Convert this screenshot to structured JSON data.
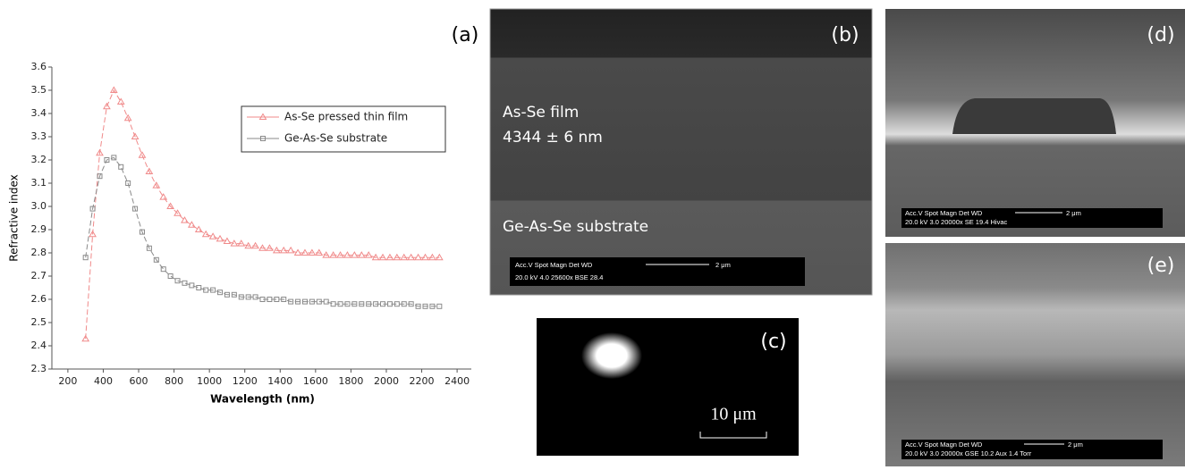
{
  "chart_data": {
    "type": "line",
    "xlabel": "Wavelength (nm)",
    "ylabel": "Refractive index",
    "x": [
      300,
      340,
      380,
      420,
      460,
      500,
      540,
      580,
      620,
      660,
      700,
      740,
      780,
      820,
      860,
      900,
      940,
      980,
      1020,
      1060,
      1100,
      1140,
      1180,
      1220,
      1260,
      1300,
      1340,
      1380,
      1420,
      1460,
      1500,
      1540,
      1580,
      1620,
      1660,
      1700,
      1740,
      1780,
      1820,
      1860,
      1900,
      1940,
      1980,
      2020,
      2060,
      2100,
      2140,
      2180,
      2220,
      2260,
      2300
    ],
    "series": [
      {
        "name": "As-Se pressed thin film",
        "color": "#f08a8a",
        "marker": "triangle",
        "values": [
          2.43,
          2.88,
          3.23,
          3.43,
          3.5,
          3.45,
          3.38,
          3.3,
          3.22,
          3.15,
          3.09,
          3.04,
          3.0,
          2.97,
          2.94,
          2.92,
          2.9,
          2.88,
          2.87,
          2.86,
          2.85,
          2.84,
          2.84,
          2.83,
          2.83,
          2.82,
          2.82,
          2.81,
          2.81,
          2.81,
          2.8,
          2.8,
          2.8,
          2.8,
          2.79,
          2.79,
          2.79,
          2.79,
          2.79,
          2.79,
          2.79,
          2.78,
          2.78,
          2.78,
          2.78,
          2.78,
          2.78,
          2.78,
          2.78,
          2.78,
          2.78
        ]
      },
      {
        "name": "Ge-As-Se substrate",
        "color": "#8a8a8a",
        "marker": "square",
        "values": [
          2.78,
          2.99,
          3.13,
          3.2,
          3.21,
          3.17,
          3.1,
          2.99,
          2.89,
          2.82,
          2.77,
          2.73,
          2.7,
          2.68,
          2.67,
          2.66,
          2.65,
          2.64,
          2.64,
          2.63,
          2.62,
          2.62,
          2.61,
          2.61,
          2.61,
          2.6,
          2.6,
          2.6,
          2.6,
          2.59,
          2.59,
          2.59,
          2.59,
          2.59,
          2.59,
          2.58,
          2.58,
          2.58,
          2.58,
          2.58,
          2.58,
          2.58,
          2.58,
          2.58,
          2.58,
          2.58,
          2.58,
          2.57,
          2.57,
          2.57,
          2.57
        ]
      }
    ],
    "xlim": [
      150,
      2450
    ],
    "ylim": [
      2.3,
      3.6
    ],
    "xticks": [
      200,
      400,
      600,
      800,
      1000,
      1200,
      1400,
      1600,
      1800,
      2000,
      2200,
      2400
    ],
    "yticks": [
      2.3,
      2.4,
      2.5,
      2.6,
      2.7,
      2.8,
      2.9,
      {
        "value": 3,
        "label": "3.0"
      },
      3.1,
      3.2,
      3.3,
      3.4,
      3.5,
      3.6
    ]
  },
  "panels": {
    "a": {
      "label": "(a)"
    },
    "b": {
      "label": "(b)",
      "film": "As-Se  film",
      "thickness": "4344 ± 6 nm",
      "substrate": "Ge-As-Se substrate",
      "info_top": "Acc.V   Spot Magn    Det   WD",
      "scale": "2 μm",
      "info_bottom": "20.0 kV 4.0    25600x   BSE 28.4"
    },
    "c": {
      "label": "(c)",
      "scale": "10 μm"
    },
    "d": {
      "label": "(d)",
      "info_top": "Acc.V   Spot Magn    Det   WD",
      "scale": "2 μm",
      "info_bottom": "20.0 kV 3.0    20000x   SE    19.4   Hivac"
    },
    "e": {
      "label": "(e)",
      "info_top": "Acc.V   Spot Magn    Det   WD",
      "scale": "2 μm",
      "info_bottom": "20.0 kV 3.0    20000x   GSE  10.2   Aux        1.4 Torr"
    }
  }
}
